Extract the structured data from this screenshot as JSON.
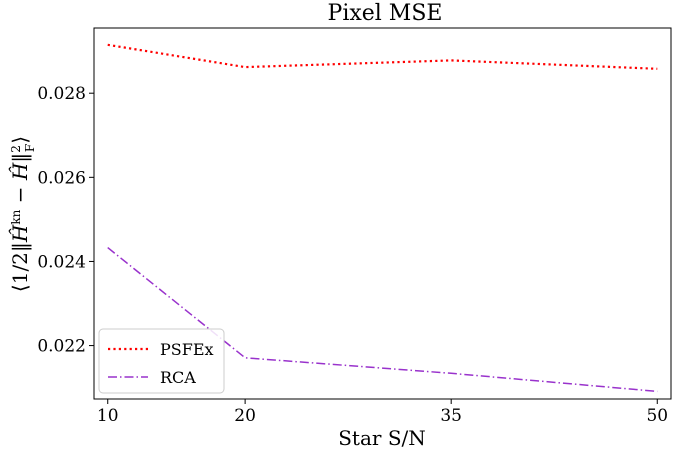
{
  "chart_data": {
    "type": "line",
    "title": "Pixel MSE",
    "xlabel": "Star S/N",
    "ylabel": "⟨1/2‖Ĥ^kn − Ĥ‖²_F⟩",
    "ylabel_parts": {
      "open": "⟨1/2‖",
      "h1": "Ĥ",
      "sup1": "kn",
      "minus": " − ",
      "h2": "Ĥ",
      "close": "‖",
      "sup2": "2",
      "sub2": "F",
      "end": "⟩"
    },
    "x_ticks": [
      10,
      20,
      35,
      50
    ],
    "x_tick_labels": [
      "10",
      "20",
      "35",
      "50"
    ],
    "xlim": [
      9,
      51
    ],
    "ylim": [
      0.02073,
      0.02955
    ],
    "y_ticks": [
      0.022,
      0.024,
      0.026,
      0.028
    ],
    "y_tick_labels": [
      "0.022",
      "0.024",
      "0.026",
      "0.028"
    ],
    "grid": false,
    "legend_position": "lower-left",
    "series": [
      {
        "name": "PSFEx",
        "color": "#ff0000",
        "linestyle": "dotted",
        "x": [
          10,
          20,
          35,
          50
        ],
        "y": [
          0.02915,
          0.02862,
          0.02878,
          0.02858
        ]
      },
      {
        "name": "RCA",
        "color": "#9932cc",
        "linestyle": "dashdot",
        "x": [
          10,
          20,
          35,
          50
        ],
        "y": [
          0.02433,
          0.02171,
          0.02134,
          0.02091
        ]
      }
    ]
  }
}
